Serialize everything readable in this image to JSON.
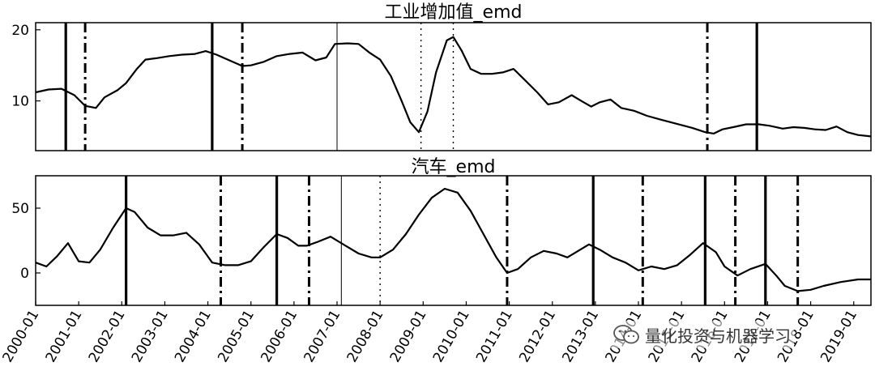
{
  "watermark": {
    "text": "量化投资与机器学习",
    "icon": "wechat-icon"
  },
  "x_ticks": [
    "2000-01",
    "2001-01",
    "2002-01",
    "2003-01",
    "2004-01",
    "2005-01",
    "2006-01",
    "2007-01",
    "2008-01",
    "2009-01",
    "2010-01",
    "2011-01",
    "2012-01",
    "2013-01",
    "2014-01",
    "2015-01",
    "2016-01",
    "2017-01",
    "2018-01",
    "2019-01"
  ],
  "chart_data": [
    {
      "type": "line",
      "title": "工业增加值_emd",
      "xlabel": "",
      "ylabel": "",
      "x_range": [
        2000.0,
        2019.4
      ],
      "ylim": [
        3,
        21
      ],
      "y_ticks": [
        10,
        20
      ],
      "series": [
        {
          "values": [
            [
              2000.0,
              11.2
            ],
            [
              2000.3,
              11.6
            ],
            [
              2000.6,
              11.7
            ],
            [
              2000.9,
              10.8
            ],
            [
              2001.15,
              9.3
            ],
            [
              2001.4,
              9.0
            ],
            [
              2001.6,
              10.5
            ],
            [
              2001.9,
              11.5
            ],
            [
              2002.1,
              12.5
            ],
            [
              2002.35,
              14.5
            ],
            [
              2002.55,
              15.8
            ],
            [
              2002.8,
              16.0
            ],
            [
              2003.1,
              16.3
            ],
            [
              2003.4,
              16.5
            ],
            [
              2003.7,
              16.6
            ],
            [
              2003.95,
              17.0
            ],
            [
              2004.2,
              16.5
            ],
            [
              2004.5,
              15.7
            ],
            [
              2004.8,
              14.9
            ],
            [
              2005.0,
              15.0
            ],
            [
              2005.3,
              15.5
            ],
            [
              2005.6,
              16.3
            ],
            [
              2005.9,
              16.6
            ],
            [
              2006.2,
              16.8
            ],
            [
              2006.5,
              15.7
            ],
            [
              2006.75,
              16.1
            ],
            [
              2006.95,
              18.0
            ],
            [
              2007.25,
              18.1
            ],
            [
              2007.5,
              18.0
            ],
            [
              2007.75,
              16.8
            ],
            [
              2008.0,
              15.8
            ],
            [
              2008.25,
              13.5
            ],
            [
              2008.5,
              10.0
            ],
            [
              2008.7,
              7.0
            ],
            [
              2008.9,
              5.6
            ],
            [
              2009.1,
              8.5
            ],
            [
              2009.3,
              14.0
            ],
            [
              2009.55,
              18.5
            ],
            [
              2009.7,
              19.0
            ],
            [
              2009.9,
              17.0
            ],
            [
              2010.1,
              14.5
            ],
            [
              2010.35,
              13.8
            ],
            [
              2010.6,
              13.8
            ],
            [
              2010.85,
              14.0
            ],
            [
              2011.1,
              14.5
            ],
            [
              2011.35,
              13.0
            ],
            [
              2011.65,
              11.2
            ],
            [
              2011.9,
              9.5
            ],
            [
              2012.15,
              9.8
            ],
            [
              2012.45,
              10.8
            ],
            [
              2012.7,
              9.9
            ],
            [
              2012.9,
              9.2
            ],
            [
              2013.1,
              9.8
            ],
            [
              2013.35,
              10.2
            ],
            [
              2013.6,
              9.0
            ],
            [
              2013.9,
              8.6
            ],
            [
              2014.2,
              7.9
            ],
            [
              2014.5,
              7.4
            ],
            [
              2014.75,
              7.0
            ],
            [
              2015.0,
              6.6
            ],
            [
              2015.25,
              6.2
            ],
            [
              2015.55,
              5.6
            ],
            [
              2015.75,
              5.4
            ],
            [
              2015.95,
              6.0
            ],
            [
              2016.2,
              6.3
            ],
            [
              2016.5,
              6.7
            ],
            [
              2016.8,
              6.7
            ],
            [
              2017.05,
              6.5
            ],
            [
              2017.35,
              6.1
            ],
            [
              2017.6,
              6.3
            ],
            [
              2017.85,
              6.2
            ],
            [
              2018.1,
              6.0
            ],
            [
              2018.35,
              5.9
            ],
            [
              2018.6,
              6.4
            ],
            [
              2018.85,
              5.6
            ],
            [
              2019.1,
              5.2
            ],
            [
              2019.4,
              5.0
            ]
          ]
        }
      ],
      "markers": [
        {
          "x": 2000.7,
          "style": "solid"
        },
        {
          "x": 2001.15,
          "style": "dashdot"
        },
        {
          "x": 2004.1,
          "style": "solid"
        },
        {
          "x": 2004.8,
          "style": "dashdot"
        },
        {
          "x": 2007.0,
          "style": "thin"
        },
        {
          "x": 2008.95,
          "style": "dotted"
        },
        {
          "x": 2009.7,
          "style": "dotted"
        },
        {
          "x": 2015.6,
          "style": "dashdot"
        },
        {
          "x": 2016.75,
          "style": "solid"
        }
      ]
    },
    {
      "type": "line",
      "title": "汽车_emd",
      "xlabel": "",
      "ylabel": "",
      "x_range": [
        2000.0,
        2019.4
      ],
      "ylim": [
        -25,
        75
      ],
      "y_ticks": [
        0,
        50
      ],
      "series": [
        {
          "values": [
            [
              2000.0,
              8.0
            ],
            [
              2000.25,
              5.0
            ],
            [
              2000.5,
              13.0
            ],
            [
              2000.75,
              23.0
            ],
            [
              2001.0,
              9.0
            ],
            [
              2001.25,
              8.0
            ],
            [
              2001.5,
              18.0
            ],
            [
              2001.8,
              35.0
            ],
            [
              2002.1,
              50.0
            ],
            [
              2002.3,
              47.0
            ],
            [
              2002.6,
              35.0
            ],
            [
              2002.9,
              29.0
            ],
            [
              2003.2,
              29.0
            ],
            [
              2003.5,
              31.0
            ],
            [
              2003.8,
              22.0
            ],
            [
              2004.1,
              8.0
            ],
            [
              2004.4,
              6.0
            ],
            [
              2004.7,
              6.0
            ],
            [
              2005.0,
              9.0
            ],
            [
              2005.3,
              20.0
            ],
            [
              2005.6,
              30.0
            ],
            [
              2005.85,
              27.0
            ],
            [
              2006.1,
              21.0
            ],
            [
              2006.3,
              21.0
            ],
            [
              2006.55,
              24.0
            ],
            [
              2006.85,
              28.0
            ],
            [
              2007.2,
              21.0
            ],
            [
              2007.5,
              15.0
            ],
            [
              2007.8,
              12.0
            ],
            [
              2008.0,
              12.0
            ],
            [
              2008.3,
              18.0
            ],
            [
              2008.6,
              30.0
            ],
            [
              2008.9,
              45.0
            ],
            [
              2009.2,
              58.0
            ],
            [
              2009.5,
              65.0
            ],
            [
              2009.8,
              62.0
            ],
            [
              2010.1,
              48.0
            ],
            [
              2010.4,
              30.0
            ],
            [
              2010.7,
              12.0
            ],
            [
              2010.95,
              0.0
            ],
            [
              2011.2,
              3.0
            ],
            [
              2011.5,
              12.0
            ],
            [
              2011.8,
              17.0
            ],
            [
              2012.1,
              15.0
            ],
            [
              2012.35,
              12.0
            ],
            [
              2012.6,
              17.0
            ],
            [
              2012.85,
              22.0
            ],
            [
              2013.1,
              18.0
            ],
            [
              2013.4,
              12.0
            ],
            [
              2013.7,
              8.0
            ],
            [
              2014.0,
              2.0
            ],
            [
              2014.3,
              5.0
            ],
            [
              2014.6,
              3.0
            ],
            [
              2014.9,
              6.0
            ],
            [
              2015.2,
              14.0
            ],
            [
              2015.5,
              23.0
            ],
            [
              2015.8,
              16.0
            ],
            [
              2016.0,
              5.0
            ],
            [
              2016.3,
              -2.0
            ],
            [
              2016.6,
              3.0
            ],
            [
              2016.95,
              7.0
            ],
            [
              2017.2,
              -2.0
            ],
            [
              2017.4,
              -10.0
            ],
            [
              2017.7,
              -14.0
            ],
            [
              2018.0,
              -13.0
            ],
            [
              2018.3,
              -10.0
            ],
            [
              2018.7,
              -7.0
            ],
            [
              2019.1,
              -5.0
            ],
            [
              2019.4,
              -5.0
            ]
          ]
        }
      ],
      "markers": [
        {
          "x": 2002.1,
          "style": "solid"
        },
        {
          "x": 2004.3,
          "style": "dashdot"
        },
        {
          "x": 2005.6,
          "style": "solid"
        },
        {
          "x": 2006.35,
          "style": "dashdot"
        },
        {
          "x": 2007.1,
          "style": "thin"
        },
        {
          "x": 2008.0,
          "style": "dotted"
        },
        {
          "x": 2010.95,
          "style": "dashdot"
        },
        {
          "x": 2012.95,
          "style": "solid"
        },
        {
          "x": 2014.1,
          "style": "dashdot"
        },
        {
          "x": 2015.55,
          "style": "solid"
        },
        {
          "x": 2016.25,
          "style": "dashdot"
        },
        {
          "x": 2016.95,
          "style": "solid"
        },
        {
          "x": 2017.7,
          "style": "dashdot"
        }
      ]
    }
  ]
}
